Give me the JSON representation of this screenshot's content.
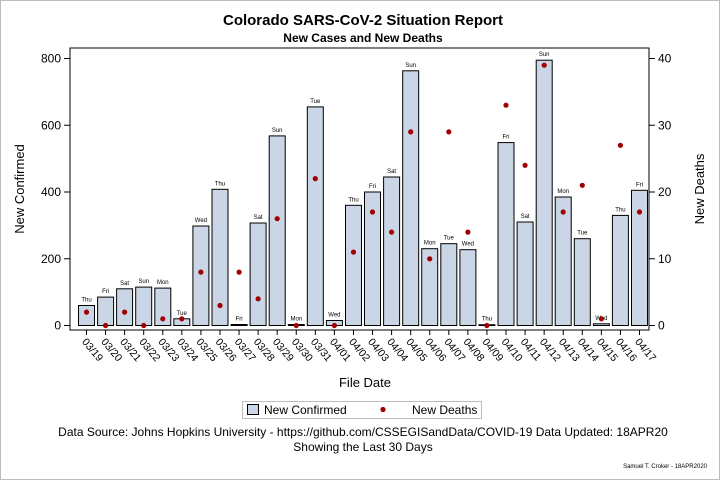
{
  "chart_data": {
    "type": "bar",
    "title": "Colorado SARS-CoV-2 Situation Report",
    "subtitle": "New Cases and New Deaths",
    "xlabel": "File Date",
    "ylabel_left": "New Confirmed",
    "ylabel_right": "New Deaths",
    "ylim_left": [
      0,
      840
    ],
    "ylim_right": [
      0,
      42
    ],
    "yticks_left": [
      "0",
      "200",
      "400",
      "600",
      "800"
    ],
    "yticks_right": [
      "0",
      "10",
      "20",
      "30",
      "40"
    ],
    "categories": [
      "03/19",
      "03/20",
      "03/21",
      "03/22",
      "03/23",
      "03/24",
      "03/25",
      "03/26",
      "03/27",
      "03/28",
      "03/29",
      "03/30",
      "03/31",
      "04/01",
      "04/02",
      "04/03",
      "04/04",
      "04/05",
      "04/06",
      "04/07",
      "04/08",
      "04/09",
      "04/10",
      "04/11",
      "04/12",
      "04/13",
      "04/14",
      "04/15",
      "04/16",
      "04/17"
    ],
    "day_labels": [
      "Thu",
      "Fri",
      "Sat",
      "Sun",
      "Mon",
      "Tue",
      "Wed",
      "Thu",
      "Fri",
      "Sat",
      "Sun",
      "Mon",
      "Tue",
      "Wed",
      "Thu",
      "Fri",
      "Sat",
      "Sun",
      "Mon",
      "Tue",
      "Wed",
      "Thu",
      "Fri",
      "Sat",
      "Sun",
      "Mon",
      "Tue",
      "Wed",
      "Thu",
      "Fri"
    ],
    "series": [
      {
        "name": "New Confirmed",
        "kind": "bar",
        "axis": "left",
        "color": "#CAD5E5",
        "values": [
          60,
          85,
          110,
          115,
          112,
          20,
          298,
          408,
          3,
          307,
          568,
          3,
          655,
          15,
          360,
          400,
          445,
          763,
          230,
          245,
          227,
          0,
          548,
          310,
          795,
          385,
          260,
          5,
          330,
          405
        ]
      },
      {
        "name": "New Deaths",
        "kind": "scatter",
        "axis": "right",
        "color": "#A00000",
        "values": [
          2,
          0,
          2,
          0,
          1,
          1,
          8,
          3,
          8,
          4,
          16,
          0,
          22,
          0,
          11,
          17,
          14,
          29,
          10,
          29,
          14,
          0,
          33,
          24,
          39,
          17,
          21,
          1,
          27,
          17
        ]
      }
    ],
    "grid": false,
    "legend_position": "bottom"
  },
  "footnotes": {
    "source": "Data Source: Johns Hopkins University - https://github.com/CSSEGISandData/COVID-19 Data Updated: 18APR20",
    "window": "Showing the Last 30 Days",
    "signature": "Samuel T. Croker - 18APR2020"
  }
}
